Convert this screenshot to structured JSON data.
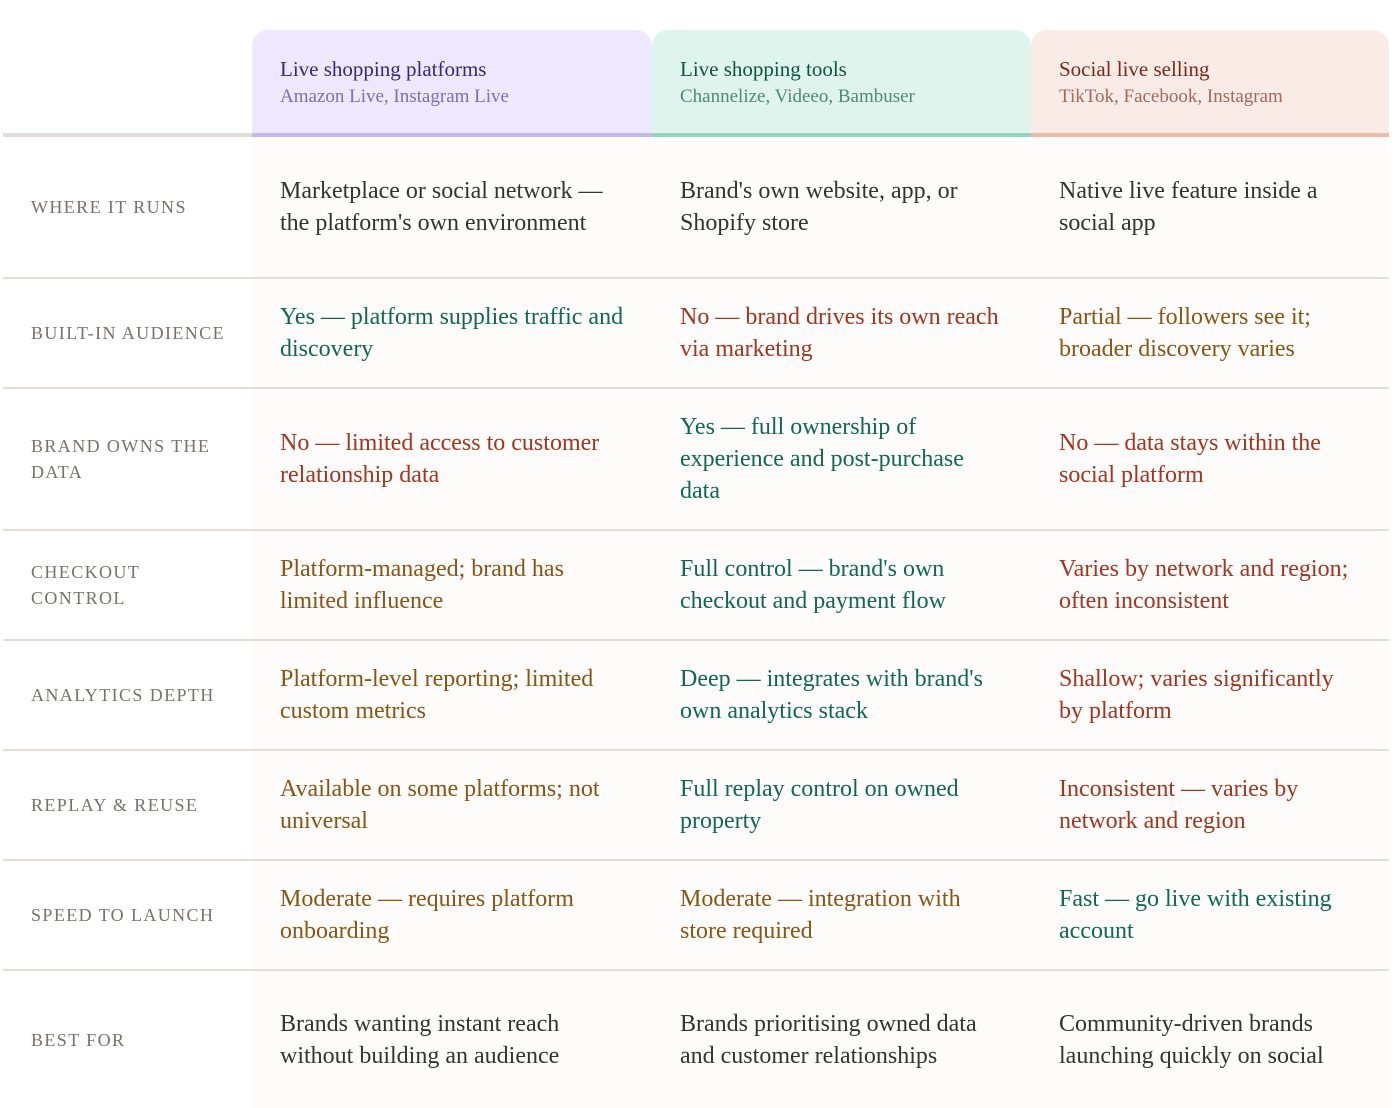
{
  "colors": {
    "neutral": "#333333",
    "positive": "#10694e",
    "negative": "#a3351f",
    "mixed": "#8a5412",
    "label": "#77726d",
    "divider": "#e2ddd6"
  },
  "columns": [
    {
      "title": "Live shopping platforms",
      "examples": "Amazon Live, Instagram Live",
      "background": "#ede8fd",
      "accent": "#c4b9ef"
    },
    {
      "title": "Live shopping tools",
      "examples": "Channelize, Videeo, Bambuser",
      "background": "#def4ec",
      "accent": "#8dd6bf"
    },
    {
      "title": "Social live selling",
      "examples": "TikTok, Facebook, Instagram",
      "background": "#faebe6",
      "accent": "#efbca8"
    }
  ],
  "rows": [
    {
      "label": "Where it runs",
      "cells": [
        {
          "text": "Marketplace or social network — the platform's own environment",
          "tone": "neutral"
        },
        {
          "text": "Brand's own website, app, or Shopify store",
          "tone": "neutral"
        },
        {
          "text": "Native live feature inside a social app",
          "tone": "neutral"
        }
      ]
    },
    {
      "label": "Built-in audience",
      "cells": [
        {
          "text": "Yes — platform supplies traffic and discovery",
          "tone": "positive"
        },
        {
          "text": "No — brand drives its own reach via marketing",
          "tone": "negative"
        },
        {
          "text": "Partial — followers see it; broader discovery varies",
          "tone": "mixed"
        }
      ]
    },
    {
      "label": "Brand owns the data",
      "cells": [
        {
          "text": "No — limited access to customer relationship data",
          "tone": "negative"
        },
        {
          "text": "Yes — full ownership of experience and post-purchase data",
          "tone": "positive"
        },
        {
          "text": "No — data stays within the social platform",
          "tone": "negative"
        }
      ]
    },
    {
      "label": "Checkout control",
      "cells": [
        {
          "text": "Platform-managed; brand has limited influence",
          "tone": "mixed"
        },
        {
          "text": "Full control — brand's own checkout and payment flow",
          "tone": "positive"
        },
        {
          "text": "Varies by network and region; often inconsistent",
          "tone": "negative"
        }
      ]
    },
    {
      "label": "Analytics depth",
      "cells": [
        {
          "text": "Platform-level reporting; limited custom metrics",
          "tone": "mixed"
        },
        {
          "text": "Deep — integrates with brand's own analytics stack",
          "tone": "positive"
        },
        {
          "text": "Shallow; varies significantly by platform",
          "tone": "negative"
        }
      ]
    },
    {
      "label": "Replay & reuse",
      "cells": [
        {
          "text": "Available on some platforms; not universal",
          "tone": "mixed"
        },
        {
          "text": "Full replay control on owned property",
          "tone": "positive"
        },
        {
          "text": "Inconsistent — varies by network and region",
          "tone": "negative"
        }
      ]
    },
    {
      "label": "Speed to launch",
      "cells": [
        {
          "text": "Moderate — requires platform onboarding",
          "tone": "mixed"
        },
        {
          "text": "Moderate — integration with store required",
          "tone": "mixed"
        },
        {
          "text": "Fast — go live with existing account",
          "tone": "positive"
        }
      ]
    },
    {
      "label": "Best for",
      "cells": [
        {
          "text": "Brands wanting instant reach without building an audience",
          "tone": "neutral"
        },
        {
          "text": "Brands prioritising owned data and customer relationships",
          "tone": "neutral"
        },
        {
          "text": "Community-driven brands launching quickly on social",
          "tone": "neutral"
        }
      ]
    }
  ]
}
